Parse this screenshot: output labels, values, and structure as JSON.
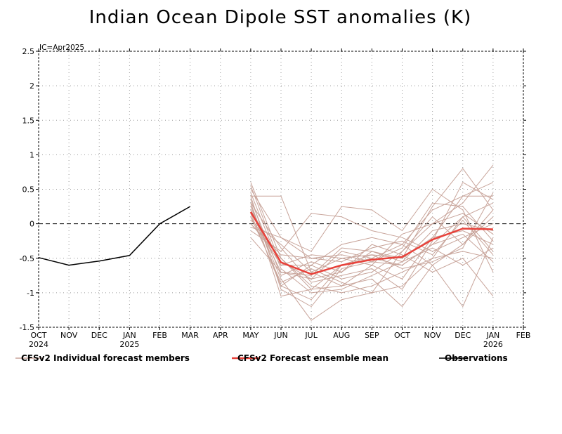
{
  "chart_data": {
    "type": "line",
    "title": "Indian Ocean Dipole SST anomalies (K)",
    "annotation": "IC=Apr2025",
    "x_ticks": [
      "OCT",
      "NOV",
      "DEC",
      "JAN",
      "FEB",
      "MAR",
      "APR",
      "MAY",
      "JUN",
      "JUL",
      "AUG",
      "SEP",
      "OCT",
      "NOV",
      "DEC",
      "JAN",
      "FEB"
    ],
    "year_labels": [
      {
        "index": 0,
        "label": "2024"
      },
      {
        "index": 3,
        "label": "2025"
      },
      {
        "index": 15,
        "label": "2026"
      }
    ],
    "ylim": [
      -1.5,
      2.5
    ],
    "y_ticks": [
      "-1.5",
      "-1",
      "-0.5",
      "0",
      "0.5",
      "1",
      "1.5",
      "2",
      "2.5"
    ],
    "grid": true,
    "zero_line": true,
    "legend": [
      {
        "label": "CFSv2 Individual forecast members",
        "color": "#c8a49a"
      },
      {
        "label": "CFSv2 Forecast ensemble mean",
        "color": "#e8413a"
      },
      {
        "label": "Observations",
        "color": "#000000"
      }
    ],
    "observations": {
      "x": [
        0,
        1,
        2,
        3,
        4,
        5
      ],
      "values": [
        -0.49,
        -0.6,
        -0.54,
        -0.46,
        0.0,
        0.25
      ]
    },
    "ensemble_mean": {
      "x": [
        7,
        8,
        9,
        10,
        11,
        12,
        13,
        14,
        15
      ],
      "values": [
        0.17,
        -0.56,
        -0.73,
        -0.6,
        -0.52,
        -0.48,
        -0.23,
        -0.07,
        -0.08
      ]
    },
    "members": {
      "x": [
        7,
        8,
        9,
        10,
        11,
        12,
        13,
        14,
        15
      ],
      "values": [
        [
          0.5,
          -0.2,
          -0.5,
          -0.45,
          -0.55,
          -0.6,
          -0.3,
          0.1,
          0.3
        ],
        [
          0.4,
          0.4,
          -0.7,
          -0.9,
          -0.8,
          -1.2,
          -0.6,
          -0.3,
          0.1
        ],
        [
          0.3,
          -0.9,
          -1.1,
          -0.6,
          -0.5,
          -0.3,
          0.2,
          0.4,
          0.6
        ],
        [
          0.2,
          -0.7,
          -0.8,
          -0.7,
          -0.4,
          -0.5,
          -0.2,
          -0.1,
          -0.3
        ],
        [
          0.1,
          -0.6,
          -0.6,
          -0.8,
          -0.7,
          -0.4,
          0.0,
          0.3,
          0.85
        ],
        [
          0.0,
          -0.5,
          -0.9,
          -1.0,
          -0.9,
          -0.7,
          -0.5,
          -0.4,
          -0.5
        ],
        [
          -0.1,
          -0.4,
          0.15,
          0.1,
          -0.1,
          -0.2,
          -0.4,
          -0.2,
          0.0
        ],
        [
          0.3,
          -1.05,
          -0.95,
          -0.6,
          -0.45,
          -0.5,
          0.25,
          0.8,
          0.2
        ],
        [
          0.25,
          -0.8,
          -1.4,
          -1.1,
          -1.0,
          -0.9,
          -0.5,
          0.1,
          -0.4
        ],
        [
          0.15,
          -0.9,
          -0.6,
          -0.3,
          -0.2,
          -0.3,
          -0.6,
          -1.2,
          -0.2
        ],
        [
          0.05,
          -0.3,
          -0.7,
          -0.5,
          -0.6,
          -0.8,
          -0.2,
          0.4,
          0.4
        ],
        [
          -0.05,
          -0.2,
          -0.4,
          0.25,
          0.2,
          -0.1,
          0.5,
          0.2,
          -0.7
        ],
        [
          0.35,
          -0.75,
          -0.55,
          -0.7,
          -0.3,
          -0.45,
          -0.7,
          -0.5,
          -1.05
        ],
        [
          0.45,
          -0.65,
          -1.0,
          -0.95,
          -0.75,
          -0.55,
          -0.1,
          0.0,
          -0.1
        ],
        [
          0.2,
          -0.55,
          -0.8,
          -0.4,
          -0.5,
          -0.6,
          -0.3,
          -0.15,
          -0.55
        ],
        [
          0.1,
          -0.85,
          -0.65,
          -0.85,
          -1.0,
          -0.4,
          0.1,
          -0.3,
          0.2
        ],
        [
          0.0,
          -0.45,
          -0.5,
          -0.55,
          -0.35,
          -0.25,
          -0.45,
          0.05,
          -0.45
        ],
        [
          0.3,
          -0.35,
          -0.85,
          -0.75,
          -0.65,
          -0.95,
          -0.25,
          0.6,
          0.35
        ],
        [
          0.4,
          -0.95,
          -1.2,
          -0.65,
          -0.55,
          -0.35,
          0.3,
          0.25,
          -0.25
        ],
        [
          0.55,
          -0.6,
          -0.45,
          -0.5,
          -0.45,
          -0.65,
          -0.55,
          -0.35,
          0.45
        ],
        [
          -0.2,
          -0.7,
          -0.75,
          -0.35,
          -0.4,
          -0.55,
          -0.35,
          -0.6,
          -0.35
        ],
        [
          0.6,
          -0.5,
          -0.95,
          -0.9,
          -0.6,
          -0.15,
          0.0,
          0.15,
          -0.15
        ]
      ]
    }
  }
}
